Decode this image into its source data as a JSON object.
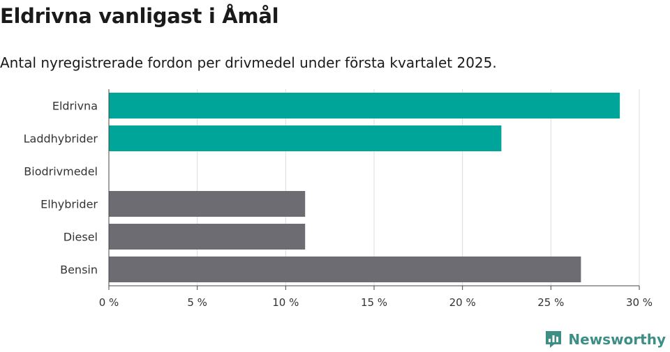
{
  "title": "Eldrivna vanligast i Åmål",
  "subtitle": "Antal nyregistrerade fordon per drivmedel under första kvartalet 2025.",
  "brand": {
    "name": "Newsworthy",
    "icon": "newsworthy-logo-icon",
    "color": "#3d8f86"
  },
  "chart_data": {
    "type": "bar",
    "orientation": "horizontal",
    "categories": [
      "Eldrivna",
      "Laddhybrider",
      "Biodrivmedel",
      "Elhybrider",
      "Diesel",
      "Bensin"
    ],
    "values": [
      28.9,
      22.2,
      0,
      11.1,
      11.1,
      26.7
    ],
    "colors": [
      "#00a59a",
      "#00a59a",
      "#00a59a",
      "#6e6c73",
      "#6e6c73",
      "#6e6c73"
    ],
    "xlim": [
      0,
      30
    ],
    "xticks": [
      0,
      5,
      10,
      15,
      20,
      25,
      30
    ],
    "xtick_labels": [
      "0 %",
      "5 %",
      "10 %",
      "15 %",
      "20 %",
      "25 %",
      "30 %"
    ],
    "grid": true,
    "xlabel": "",
    "ylabel": ""
  }
}
